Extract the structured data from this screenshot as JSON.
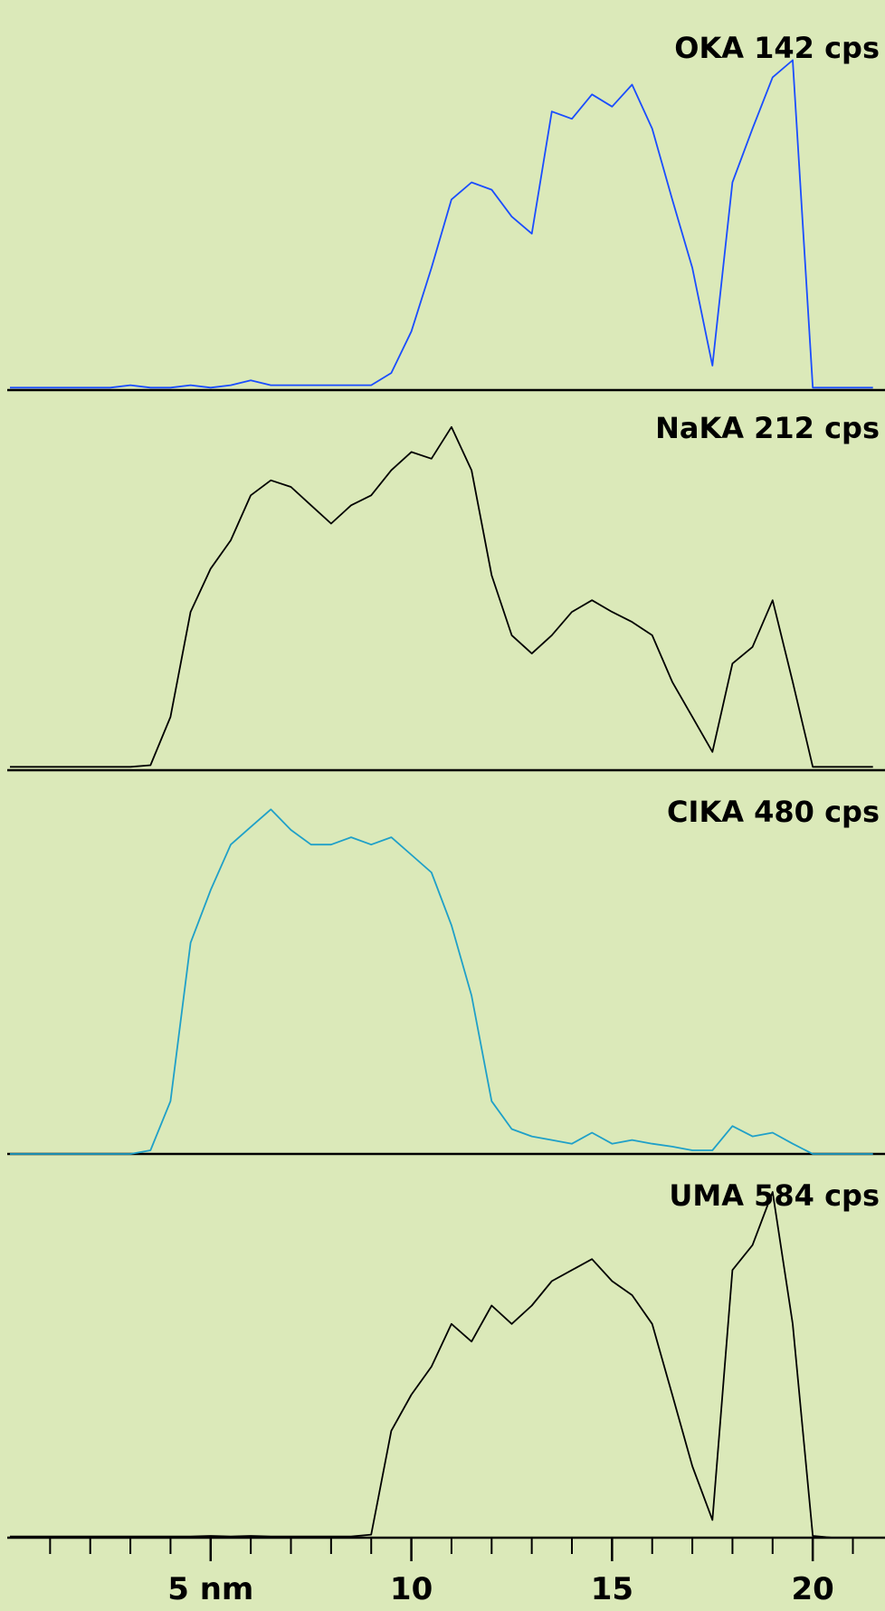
{
  "chart_data": [
    {
      "type": "line",
      "title": "OKA 142 cps",
      "color": "#1a4dff",
      "xlim": [
        0,
        21.8
      ],
      "ylim": [
        0,
        150
      ],
      "x": [
        0,
        0.5,
        1,
        1.5,
        2,
        2.5,
        3,
        3.5,
        4,
        4.5,
        5,
        5.5,
        6,
        6.5,
        7,
        7.5,
        8,
        8.5,
        9,
        9.5,
        10,
        10.5,
        11,
        11.5,
        12,
        12.5,
        13,
        13.5,
        14,
        14.5,
        15,
        15.5,
        16,
        16.5,
        17,
        17.5,
        18,
        18.5,
        19,
        19.5,
        20,
        20.5,
        21,
        21.5
      ],
      "values": [
        1,
        1,
        1,
        1,
        1,
        1,
        2,
        1,
        1,
        2,
        1,
        2,
        4,
        2,
        2,
        2,
        2,
        2,
        2,
        7,
        24,
        50,
        78,
        85,
        82,
        71,
        64,
        114,
        111,
        121,
        116,
        125,
        107,
        78,
        50,
        10,
        85,
        107,
        128,
        135,
        1,
        1,
        1,
        1
      ]
    },
    {
      "type": "line",
      "title": "NaKA 212 cps",
      "color": "#000000",
      "xlim": [
        0,
        21.8
      ],
      "ylim": [
        0,
        220
      ],
      "x": [
        0,
        0.5,
        1,
        1.5,
        2,
        2.5,
        3,
        3.5,
        4,
        4.5,
        5,
        5.5,
        6,
        6.5,
        7,
        7.5,
        8,
        8.5,
        9,
        9.5,
        10,
        10.5,
        11,
        11.5,
        12,
        12.5,
        13,
        13.5,
        14,
        14.5,
        15,
        15.5,
        16,
        16.5,
        17,
        17.5,
        18,
        18.5,
        19,
        19.5,
        20,
        20.5,
        21,
        21.5
      ],
      "values": [
        2,
        2,
        2,
        2,
        2,
        2,
        2,
        3,
        32,
        95,
        121,
        138,
        165,
        174,
        170,
        159,
        148,
        159,
        165,
        180,
        191,
        187,
        206,
        180,
        117,
        81,
        70,
        81,
        95,
        102,
        95,
        89,
        81,
        53,
        32,
        11,
        64,
        74,
        102,
        53,
        2,
        2,
        2,
        2
      ]
    },
    {
      "type": "line",
      "title": "CIKA 480 cps",
      "color": "#1fa0c8",
      "xlim": [
        0,
        21.8
      ],
      "ylim": [
        0,
        500
      ],
      "x": [
        0,
        0.5,
        1,
        1.5,
        2,
        2.5,
        3,
        3.5,
        4,
        4.5,
        5,
        5.5,
        6,
        6.5,
        7,
        7.5,
        8,
        8.5,
        9,
        9.5,
        10,
        10.5,
        11,
        11.5,
        12,
        12.5,
        13,
        13.5,
        14,
        14.5,
        15,
        15.5,
        16,
        16.5,
        17,
        17.5,
        18,
        18.5,
        19,
        19.5,
        20,
        20.5,
        21,
        21.5
      ],
      "values": [
        0,
        0,
        0,
        0,
        0,
        0,
        0,
        5,
        72,
        288,
        360,
        422,
        446,
        470,
        442,
        422,
        422,
        432,
        422,
        432,
        408,
        384,
        312,
        216,
        72,
        34,
        24,
        19,
        14,
        29,
        14,
        19,
        14,
        10,
        5,
        5,
        38,
        24,
        29,
        14,
        0,
        0,
        0,
        0
      ]
    },
    {
      "type": "line",
      "title": "UMA 584 cps",
      "color": "#000000",
      "xlim": [
        0,
        21.8
      ],
      "ylim": [
        0,
        600
      ],
      "x": [
        0,
        0.5,
        1,
        1.5,
        2,
        2.5,
        3,
        3.5,
        4,
        4.5,
        5,
        5.5,
        6,
        6.5,
        7,
        7.5,
        8,
        8.5,
        9,
        9.5,
        10,
        10.5,
        11,
        11.5,
        12,
        12.5,
        13,
        13.5,
        14,
        14.5,
        15,
        15.5,
        16,
        16.5,
        17,
        17.5,
        18,
        18.5,
        19,
        19.5,
        20,
        20.5,
        21,
        21.5
      ],
      "values": [
        2,
        2,
        2,
        2,
        2,
        2,
        2,
        2,
        2,
        2,
        3,
        2,
        3,
        2,
        2,
        2,
        2,
        2,
        5,
        175,
        234,
        280,
        350,
        321,
        380,
        350,
        380,
        420,
        438,
        456,
        420,
        397,
        350,
        234,
        117,
        29,
        438,
        479,
        566,
        350,
        3,
        0,
        0,
        0
      ],
      "xticks": [
        {
          "value": 5,
          "label": "5 nm"
        },
        10,
        15,
        20
      ],
      "minor_xticks": [
        1,
        2,
        3,
        4,
        6,
        7,
        8,
        9,
        11,
        12,
        13,
        14,
        16,
        17,
        18,
        19,
        21
      ]
    }
  ]
}
